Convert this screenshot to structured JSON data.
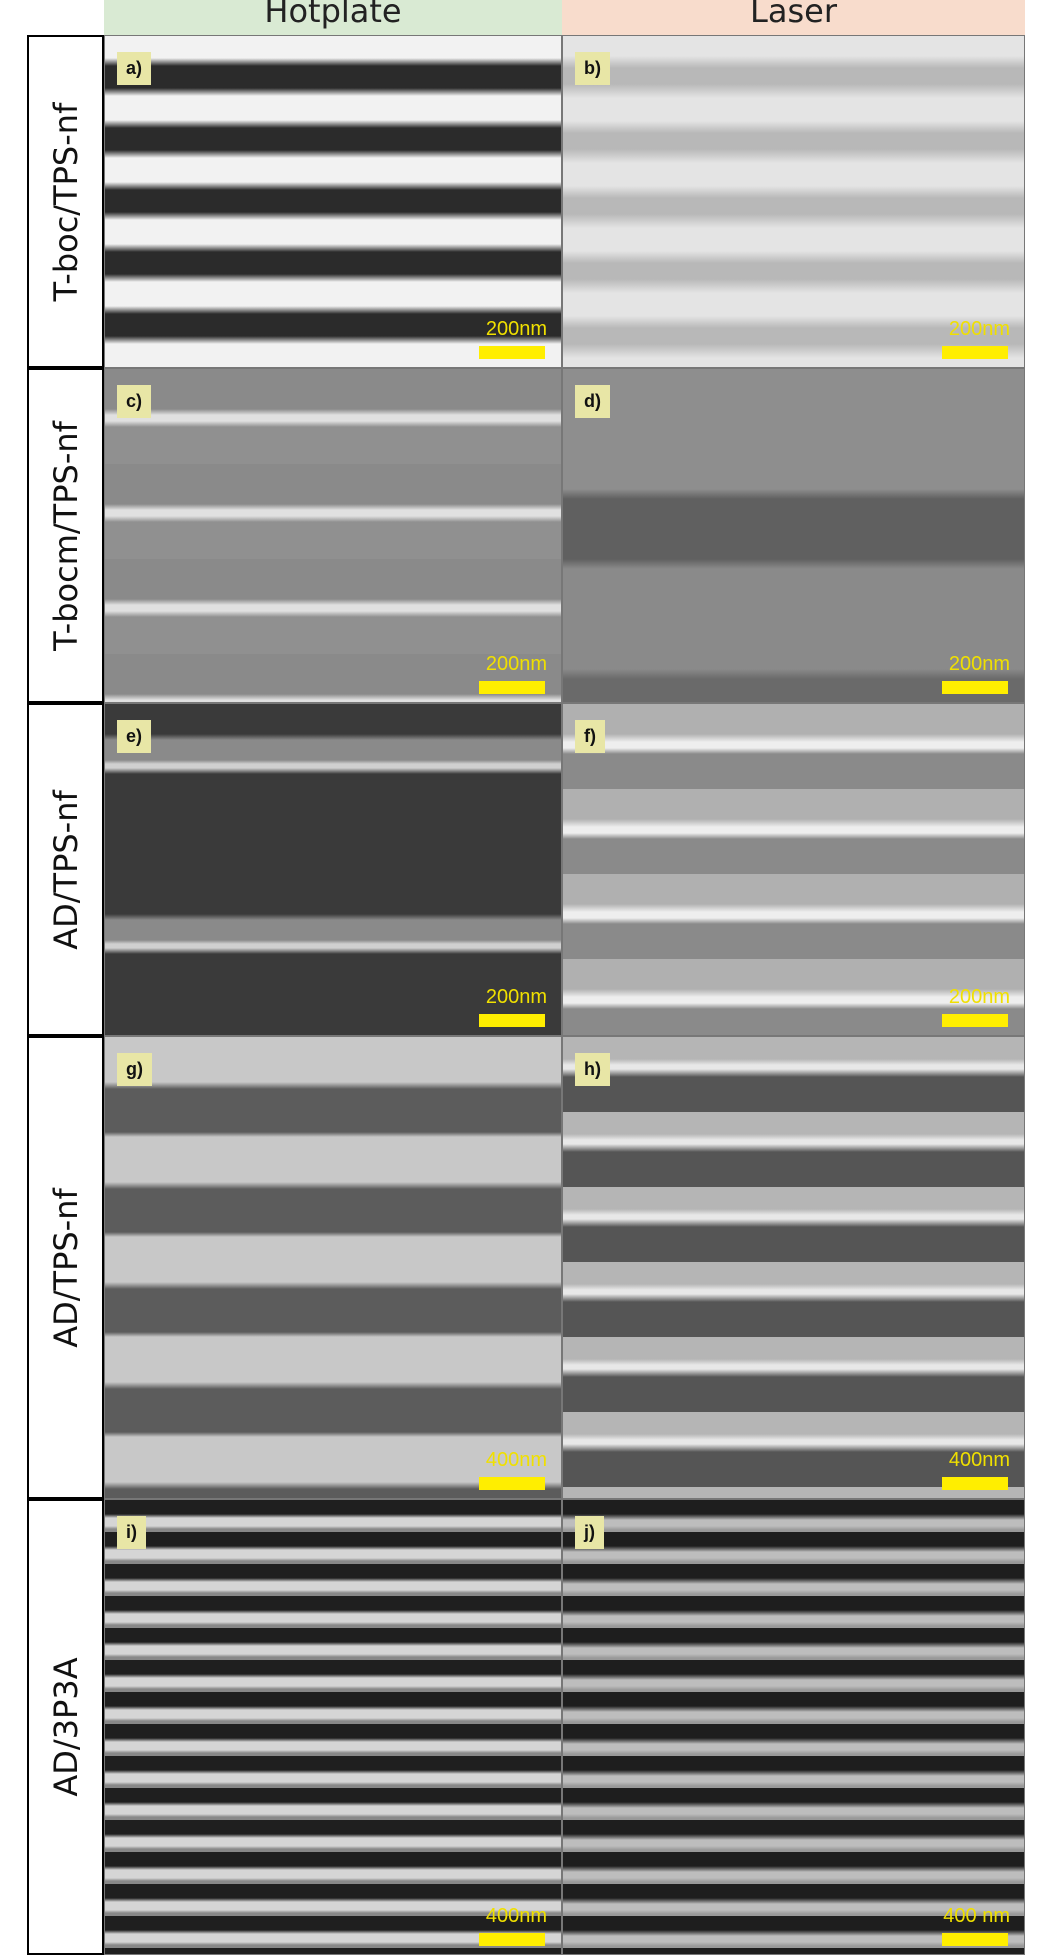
{
  "columns": [
    "Hotplate",
    "Laser"
  ],
  "rows": [
    {
      "label": "T-boc/TPS-nf",
      "panels": [
        {
          "label": "a)",
          "scale": "200nm"
        },
        {
          "label": "b)",
          "scale": "200nm"
        }
      ]
    },
    {
      "label": "T-bocm/TPS-nf",
      "panels": [
        {
          "label": "c)",
          "scale": "200nm"
        },
        {
          "label": "d)",
          "scale": "200nm"
        }
      ]
    },
    {
      "label": "AD/TPS-nf",
      "panels": [
        {
          "label": "e)",
          "scale": "200nm"
        },
        {
          "label": "f)",
          "scale": "200nm"
        }
      ]
    },
    {
      "label": "AD/TPS-nf",
      "panels": [
        {
          "label": "g)",
          "scale": "400nm"
        },
        {
          "label": "h)",
          "scale": "400nm"
        }
      ]
    },
    {
      "label": "AD/3P3A",
      "panels": [
        {
          "label": "i)",
          "scale": "400nm"
        },
        {
          "label": "j)",
          "scale": "400 nm"
        }
      ]
    }
  ]
}
